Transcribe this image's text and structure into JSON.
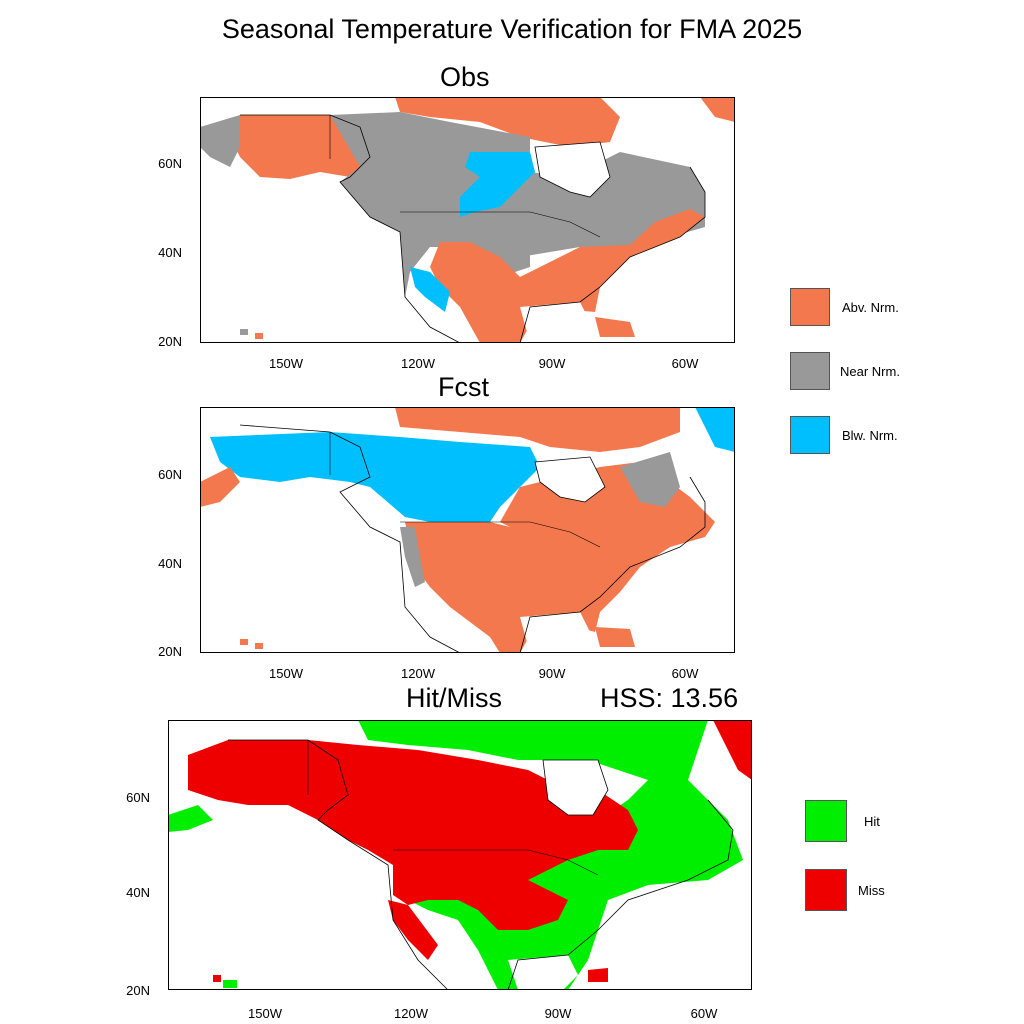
{
  "title": "Seasonal Temperature Verification for FMA 2025",
  "panels": {
    "obs": {
      "title": "Obs"
    },
    "fcst": {
      "title": "Fcst"
    },
    "hitmiss": {
      "title": "Hit/Miss",
      "score": "HSS: 13.56",
      "hss": 13.56
    }
  },
  "axes": {
    "lat_labels": [
      "60N",
      "40N",
      "20N"
    ],
    "lon_labels": [
      "150W",
      "120W",
      "90W",
      "60W"
    ]
  },
  "category_legend": [
    {
      "label": "Abv. Nrm.",
      "color": "#f4784e"
    },
    {
      "label": "Near Nrm.",
      "color": "#999999"
    },
    {
      "label": "Blw. Nrm.",
      "color": "#00bfff"
    }
  ],
  "verification_legend": [
    {
      "label": "Hit",
      "color": "#00ee00"
    },
    {
      "label": "Miss",
      "color": "#ee0000"
    }
  ],
  "chart_data": {
    "type": "map",
    "region": "North America",
    "season": "FMA 2025",
    "lat_ticks": [
      60,
      40,
      20
    ],
    "lon_ticks": [
      -150,
      -120,
      -90,
      -60
    ],
    "hss": 13.56
  }
}
